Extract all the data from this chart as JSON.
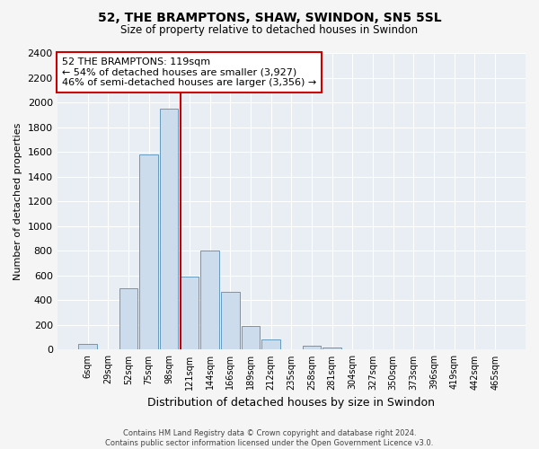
{
  "title_line1": "52, THE BRAMPTONS, SHAW, SWINDON, SN5 5SL",
  "title_line2": "Size of property relative to detached houses in Swindon",
  "xlabel": "Distribution of detached houses by size in Swindon",
  "ylabel": "Number of detached properties",
  "categories": [
    "6sqm",
    "29sqm",
    "52sqm",
    "75sqm",
    "98sqm",
    "121sqm",
    "144sqm",
    "166sqm",
    "189sqm",
    "212sqm",
    "235sqm",
    "258sqm",
    "281sqm",
    "304sqm",
    "327sqm",
    "350sqm",
    "373sqm",
    "396sqm",
    "419sqm",
    "442sqm",
    "465sqm"
  ],
  "values": [
    50,
    0,
    500,
    1580,
    1950,
    590,
    800,
    470,
    195,
    80,
    0,
    30,
    20,
    0,
    0,
    0,
    0,
    0,
    0,
    0,
    0
  ],
  "bar_color": "#ccdcec",
  "bar_edge_color": "#6699bb",
  "highlight_bar_index": 5,
  "highlight_color": "#cc0000",
  "ylim": [
    0,
    2400
  ],
  "yticks": [
    0,
    200,
    400,
    600,
    800,
    1000,
    1200,
    1400,
    1600,
    1800,
    2000,
    2200,
    2400
  ],
  "annotation_text": "52 THE BRAMPTONS: 119sqm\n← 54% of detached houses are smaller (3,927)\n46% of semi-detached houses are larger (3,356) →",
  "annotation_box_color": "#ffffff",
  "annotation_box_edge": "#cc0000",
  "footer_line1": "Contains HM Land Registry data © Crown copyright and database right 2024.",
  "footer_line2": "Contains public sector information licensed under the Open Government Licence v3.0.",
  "plot_bg_color": "#e8eef4",
  "fig_bg_color": "#f5f5f5"
}
